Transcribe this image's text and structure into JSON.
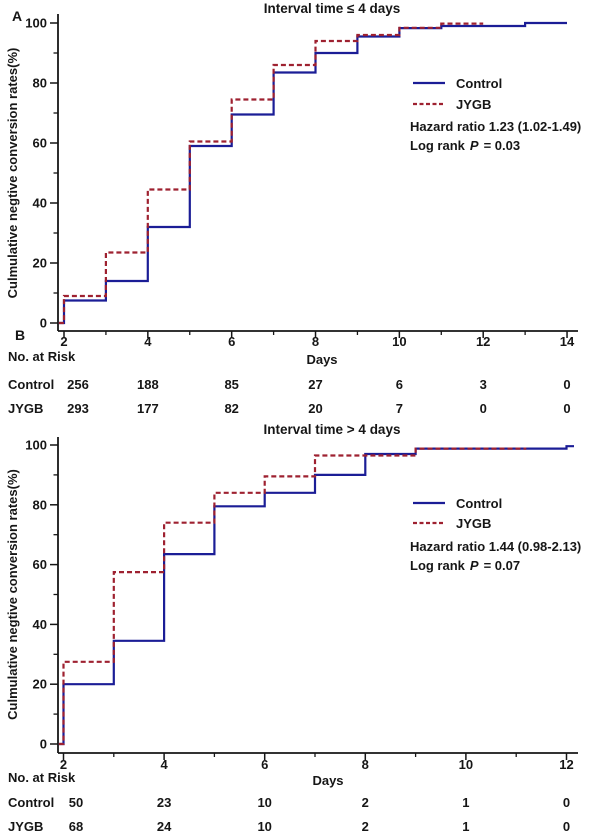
{
  "figure": {
    "panel_a_label": "A",
    "panel_b_label": "B",
    "risk_header": "No. at Risk"
  },
  "colors": {
    "control_line": "#1b1d96",
    "jygb_line": "#9e2130",
    "axis": "#161616",
    "text": "#161616"
  },
  "chart_data": [
    {
      "type": "line",
      "subtype": "step",
      "panel_letter": "A",
      "title": "Interval time ≤ 4 days",
      "xlabel": "Days",
      "ylabel": "Culmulative negtive conversion rates(%)",
      "xlim": [
        2,
        14
      ],
      "ylim": [
        0,
        100
      ],
      "xticks": [
        2,
        4,
        6,
        8,
        10,
        12,
        14
      ],
      "yticks": [
        0,
        20,
        40,
        60,
        80,
        100
      ],
      "grid": false,
      "legend_position": "right-middle",
      "legend": [
        {
          "label": "Control",
          "series": "Control",
          "style": "solid"
        },
        {
          "label": "JYGB",
          "series": "JYGB",
          "style": "dashed"
        }
      ],
      "stats": {
        "hazard_line": "Hazard ratio 1.23 (1.02-1.49)",
        "logrank_prefix": "Log rank",
        "logrank_p": "P",
        "logrank_value": "=  0.03"
      },
      "series": [
        {
          "name": "Control",
          "color": "#1b1d96",
          "dash": false,
          "steps": [
            [
              2,
              7.5
            ],
            [
              3,
              14
            ],
            [
              4,
              32
            ],
            [
              5,
              59
            ],
            [
              6,
              69.5
            ],
            [
              7,
              83.5
            ],
            [
              8,
              90
            ],
            [
              9,
              95.5
            ],
            [
              10,
              98.3
            ],
            [
              11,
              99
            ],
            [
              13,
              100
            ]
          ],
          "end_x": 14
        },
        {
          "name": "JYGB",
          "color": "#9e2130",
          "dash": true,
          "steps": [
            [
              2,
              9
            ],
            [
              3,
              23.5
            ],
            [
              4,
              44.5
            ],
            [
              5,
              60.5
            ],
            [
              6,
              74.5
            ],
            [
              7,
              86
            ],
            [
              8,
              94
            ],
            [
              9,
              96
            ],
            [
              10,
              98.4
            ],
            [
              11,
              99.8
            ]
          ],
          "end_x": 12
        }
      ],
      "risk_table": {
        "header": "No. at Risk",
        "days": [
          2,
          4,
          6,
          8,
          10,
          12,
          14
        ],
        "rows": [
          {
            "label": "Control",
            "values": [
              "256",
              "188",
              "85",
              "27",
              "6",
              "3",
              "0"
            ]
          },
          {
            "label": "JYGB",
            "values": [
              "293",
              "177",
              "82",
              "20",
              "7",
              "0",
              "0"
            ]
          }
        ]
      }
    },
    {
      "type": "line",
      "subtype": "step",
      "panel_letter": "B",
      "title": "Interval time > 4 days",
      "xlabel": "Days",
      "ylabel": "Culmulative negtive conversion rates(%)",
      "xlim": [
        2,
        12
      ],
      "ylim": [
        0,
        100
      ],
      "xticks": [
        2,
        4,
        6,
        8,
        10,
        12
      ],
      "yticks": [
        0,
        20,
        40,
        60,
        80,
        100
      ],
      "grid": false,
      "legend_position": "right-middle",
      "legend": [
        {
          "label": "Control",
          "series": "Control",
          "style": "solid"
        },
        {
          "label": "JYGB",
          "series": "JYGB",
          "style": "dashed"
        }
      ],
      "stats": {
        "hazard_line": "Hazard ratio 1.44 (0.98-2.13)",
        "logrank_prefix": "Log rank",
        "logrank_p": "P",
        "logrank_value": "=  0.07"
      },
      "series": [
        {
          "name": "Control",
          "color": "#1b1d96",
          "dash": false,
          "steps": [
            [
              2,
              20
            ],
            [
              3,
              34.5
            ],
            [
              4,
              63.5
            ],
            [
              5,
              79.5
            ],
            [
              6,
              84
            ],
            [
              7,
              90
            ],
            [
              8,
              97
            ],
            [
              9,
              98.8
            ],
            [
              12,
              99.6
            ]
          ],
          "end_x": 12.15
        },
        {
          "name": "JYGB",
          "color": "#9e2130",
          "dash": true,
          "steps": [
            [
              2,
              27.5
            ],
            [
              3,
              57.5
            ],
            [
              4,
              74
            ],
            [
              5,
              84
            ],
            [
              6,
              89.5
            ],
            [
              7,
              96.5
            ],
            [
              9,
              98.8
            ]
          ],
          "end_x": 11.2
        }
      ],
      "risk_table": {
        "header": "No. at Risk",
        "days": [
          2,
          4,
          6,
          8,
          10,
          12
        ],
        "rows": [
          {
            "label": "Control",
            "values": [
              "50",
              "23",
              "10",
              "2",
              "1",
              "0"
            ]
          },
          {
            "label": "JYGB",
            "values": [
              "68",
              "24",
              "10",
              "2",
              "1",
              "0"
            ]
          }
        ]
      }
    }
  ]
}
